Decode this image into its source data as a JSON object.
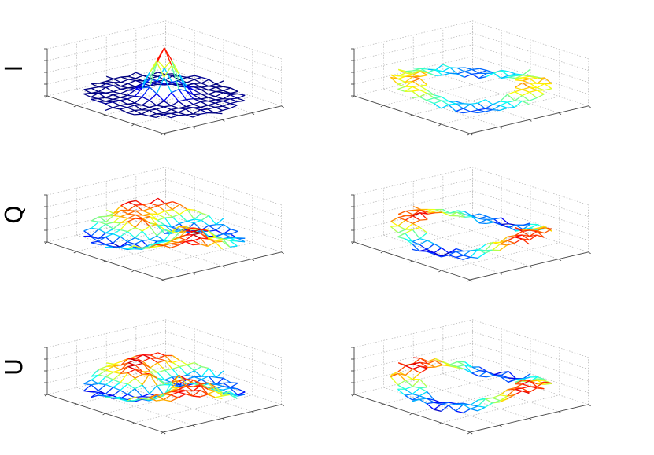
{
  "figure": {
    "rows": [
      {
        "label": "I"
      },
      {
        "label": "Q"
      },
      {
        "label": "U"
      }
    ]
  },
  "colormap": "jet",
  "chart_data": [
    {
      "type": "mesh",
      "row": "I",
      "column": 1,
      "surface": "gaussian-peak",
      "grid": true,
      "zlim": [
        0,
        1
      ],
      "peak": 1.0,
      "grid_points": 17
    },
    {
      "type": "mesh",
      "row": "I",
      "column": 2,
      "surface": "annulus",
      "grid": true,
      "zlim": [
        0,
        1
      ],
      "grid_points": 17
    },
    {
      "type": "mesh",
      "row": "Q",
      "column": 1,
      "surface": "disk-with-ridges",
      "grid": true,
      "zlim": [
        -1,
        1
      ],
      "grid_points": 17
    },
    {
      "type": "mesh",
      "row": "Q",
      "column": 2,
      "surface": "annulus-with-ridges",
      "grid": true,
      "zlim": [
        -1,
        1
      ],
      "grid_points": 17
    },
    {
      "type": "mesh",
      "row": "U",
      "column": 1,
      "surface": "disk-with-ridges",
      "grid": true,
      "zlim": [
        -1,
        1
      ],
      "grid_points": 17
    },
    {
      "type": "mesh",
      "row": "U",
      "column": 2,
      "surface": "annulus-with-ridges",
      "grid": true,
      "zlim": [
        -1,
        1
      ],
      "grid_points": 17
    }
  ]
}
